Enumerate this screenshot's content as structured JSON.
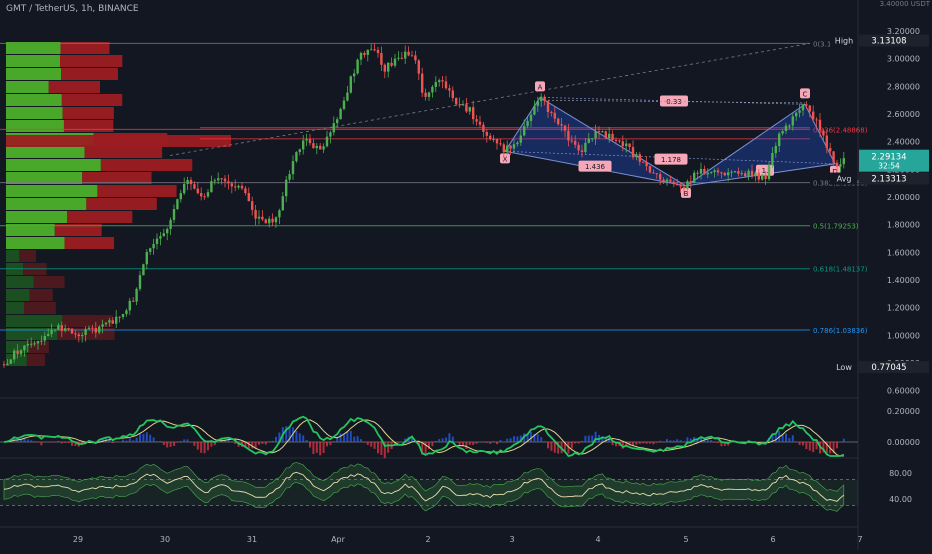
{
  "header": {
    "title": "GMT / TetherUS, 1h, BINANCE"
  },
  "chart_data": {
    "type": "candlestick",
    "currency": "3.40000 USDT",
    "yticks": [
      3.2,
      3.0,
      2.8,
      2.6,
      2.4,
      2.2,
      2.0,
      1.8,
      1.6,
      1.4,
      1.2,
      1.0,
      0.8
    ],
    "ytick_labels": [
      "3.20000",
      "3.00000",
      "2.80000",
      "2.60000",
      "2.40000",
      "2.20000",
      "2.00000",
      "1.80000",
      "1.60000",
      "1.40000",
      "1.20000",
      "1.00000",
      "0.80000"
    ],
    "xticks": [
      "29",
      "30",
      "31",
      "Apr",
      "2",
      "3",
      "4",
      "5",
      "6",
      "7"
    ],
    "markers": [
      {
        "name": "High",
        "value": 3.13108,
        "label": "High",
        "price_label": "3.13108"
      },
      {
        "name": "Last",
        "value": 2.29134,
        "price_label": "2.29134",
        "countdown": "32:54"
      },
      {
        "name": "Avg",
        "value": 2.13313,
        "label": "Avg",
        "price_label": "2.13313"
      },
      {
        "name": "Low",
        "value": 0.77045,
        "label": "Low",
        "price_label": "0.77045"
      }
    ],
    "fib_levels": [
      {
        "value": 3.11099,
        "label": "0(3.11099)"
      },
      {
        "value": 2.48868,
        "label": "0.236(2.48868)"
      },
      {
        "value": 2.10368,
        "label": "0.382(2.10368)"
      },
      {
        "value": 1.79253,
        "label": "0.5(1.79253)"
      },
      {
        "value": 1.48137,
        "label": "0.618(1.48137)"
      },
      {
        "value": 1.03836,
        "label": "0.786(1.03836)"
      }
    ],
    "pattern_points": [
      {
        "label": "X",
        "x": 505,
        "price": 2.33
      },
      {
        "label": "A",
        "x": 540,
        "price": 2.72
      },
      {
        "label": "B",
        "x": 686,
        "price": 2.08
      },
      {
        "label": "C",
        "x": 805,
        "price": 2.67
      },
      {
        "label": "D",
        "x": 835,
        "price": 2.24
      }
    ],
    "pattern_ratios": [
      {
        "text": "0.33",
        "x": 674,
        "price": 2.69
      },
      {
        "text": "1.436",
        "x": 595,
        "price": 2.22
      },
      {
        "text": "1.178",
        "x": 671,
        "price": 2.27
      },
      {
        "text": "1.",
        "x": 765,
        "price": 2.19
      }
    ],
    "macd": {
      "yticks": [
        0.2,
        0.0
      ],
      "ytick_labels": [
        "0.20000",
        "0.00000"
      ]
    },
    "rsi": {
      "yticks": [
        80,
        40
      ],
      "ytick_labels": [
        "80.00",
        "40.00"
      ]
    },
    "anchors": [
      {
        "x": 0,
        "p": 0.78
      },
      {
        "x": 30,
        "p": 0.95
      },
      {
        "x": 60,
        "p": 1.05
      },
      {
        "x": 80,
        "p": 1.02
      },
      {
        "x": 100,
        "p": 1.05
      },
      {
        "x": 120,
        "p": 1.12
      },
      {
        "x": 135,
        "p": 1.28
      },
      {
        "x": 148,
        "p": 1.62
      },
      {
        "x": 165,
        "p": 1.72
      },
      {
        "x": 185,
        "p": 2.13
      },
      {
        "x": 200,
        "p": 1.98
      },
      {
        "x": 215,
        "p": 2.13
      },
      {
        "x": 240,
        "p": 2.08
      },
      {
        "x": 255,
        "p": 1.86
      },
      {
        "x": 275,
        "p": 1.82
      },
      {
        "x": 292,
        "p": 2.25
      },
      {
        "x": 305,
        "p": 2.42
      },
      {
        "x": 320,
        "p": 2.32
      },
      {
        "x": 340,
        "p": 2.62
      },
      {
        "x": 358,
        "p": 3.0
      },
      {
        "x": 372,
        "p": 3.1
      },
      {
        "x": 385,
        "p": 2.93
      },
      {
        "x": 400,
        "p": 3.0
      },
      {
        "x": 412,
        "p": 3.05
      },
      {
        "x": 425,
        "p": 2.7
      },
      {
        "x": 440,
        "p": 2.85
      },
      {
        "x": 455,
        "p": 2.68
      },
      {
        "x": 470,
        "p": 2.62
      },
      {
        "x": 485,
        "p": 2.48
      },
      {
        "x": 505,
        "p": 2.33
      },
      {
        "x": 522,
        "p": 2.45
      },
      {
        "x": 540,
        "p": 2.72
      },
      {
        "x": 560,
        "p": 2.5
      },
      {
        "x": 580,
        "p": 2.33
      },
      {
        "x": 597,
        "p": 2.46
      },
      {
        "x": 620,
        "p": 2.42
      },
      {
        "x": 640,
        "p": 2.25
      },
      {
        "x": 662,
        "p": 2.12
      },
      {
        "x": 686,
        "p": 2.08
      },
      {
        "x": 700,
        "p": 2.2
      },
      {
        "x": 720,
        "p": 2.15
      },
      {
        "x": 745,
        "p": 2.17
      },
      {
        "x": 765,
        "p": 2.14
      },
      {
        "x": 778,
        "p": 2.45
      },
      {
        "x": 795,
        "p": 2.58
      },
      {
        "x": 805,
        "p": 2.67
      },
      {
        "x": 820,
        "p": 2.5
      },
      {
        "x": 835,
        "p": 2.24
      },
      {
        "x": 848,
        "p": 2.3
      }
    ]
  }
}
